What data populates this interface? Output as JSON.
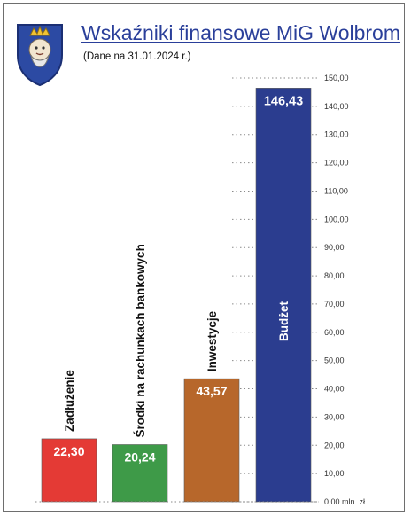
{
  "header": {
    "title": "Wskaźniki finansowe MiG Wolbrom",
    "subtitle": "(Dane na 31.01.2024 r.)"
  },
  "crest": {
    "icon": "coat-of-arms-icon"
  },
  "chart_data": {
    "type": "bar",
    "title": "Wskaźniki finansowe MiG Wolbrom",
    "subtitle": "(Dane na 31.01.2024 r.)",
    "categories": [
      "Zadłużenie",
      "Środki na rachunkach bankowych",
      "Inwestycje",
      "Budżet"
    ],
    "values": [
      22.3,
      20.24,
      43.57,
      146.43
    ],
    "value_labels": [
      "22,30",
      "20,24",
      "43,57",
      "146,43"
    ],
    "colors": [
      "#e43a35",
      "#3e9a48",
      "#b7672b",
      "#2b3d8f"
    ],
    "ylim": [
      0,
      150
    ],
    "y_ticks": [
      0,
      10,
      20,
      30,
      40,
      50,
      60,
      70,
      80,
      90,
      100,
      110,
      120,
      130,
      140,
      150
    ],
    "y_tick_labels": [
      "0,00 mln. zł",
      "10,00",
      "20,00",
      "30,00",
      "40,00",
      "50,00",
      "60,00",
      "70,00",
      "80,00",
      "90,00",
      "100,00",
      "110,00",
      "120,00",
      "130,00",
      "140,00",
      "150,00"
    ],
    "grid": true
  }
}
